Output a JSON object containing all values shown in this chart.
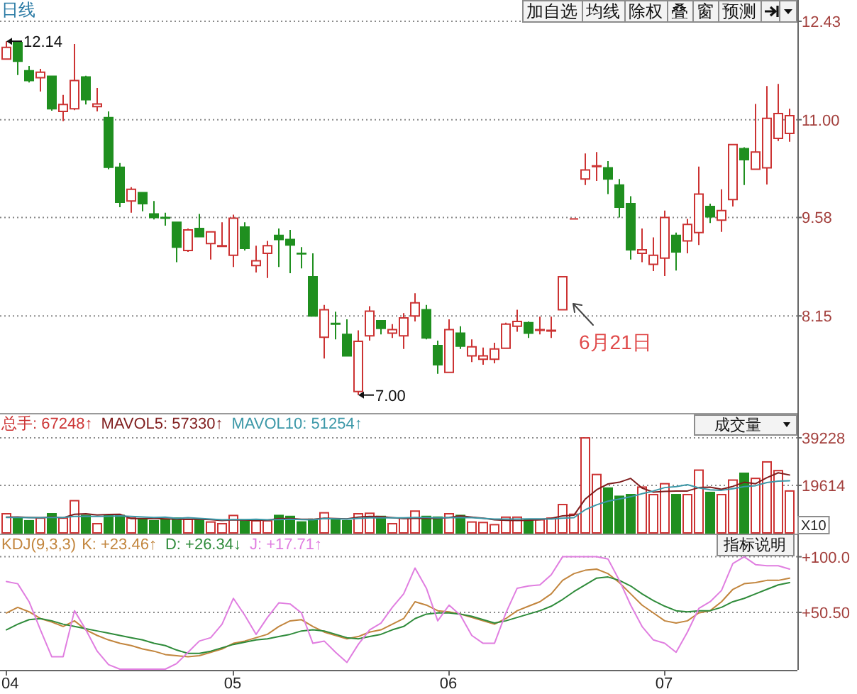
{
  "chart_data": [
    {
      "type": "candlestick",
      "title": "日线",
      "categories": [
        null,
        null,
        null,
        null,
        null,
        null,
        null,
        null,
        null,
        null,
        null,
        null,
        null,
        null,
        null,
        null,
        null,
        null,
        null,
        null,
        null,
        null,
        null,
        null,
        null,
        null,
        null,
        null,
        null,
        null,
        null,
        null,
        null,
        null,
        null,
        null,
        null,
        null,
        null,
        null,
        null,
        null,
        null,
        null,
        null,
        null,
        null,
        null,
        null,
        null,
        null,
        null,
        null,
        null,
        null,
        null,
        null,
        null,
        null,
        null,
        null,
        null,
        null,
        null,
        null,
        null,
        null,
        null,
        null,
        null
      ],
      "ohlc": [
        [
          11.88,
          12.14,
          11.88,
          12.05
        ],
        [
          12.12,
          12.12,
          11.65,
          11.85
        ],
        [
          11.71,
          11.78,
          11.54,
          11.57
        ],
        [
          11.61,
          11.74,
          11.41,
          11.69
        ],
        [
          11.63,
          11.64,
          11.13,
          11.16
        ],
        [
          11.12,
          11.36,
          10.98,
          11.22
        ],
        [
          11.16,
          12.1,
          11.14,
          11.57
        ],
        [
          11.62,
          11.64,
          11.22,
          11.29
        ],
        [
          11.19,
          11.46,
          11.12,
          11.23
        ],
        [
          11.03,
          11.12,
          10.28,
          10.31
        ],
        [
          10.31,
          10.37,
          9.73,
          9.8
        ],
        [
          9.82,
          10.02,
          9.65,
          9.99
        ],
        [
          9.94,
          9.94,
          9.67,
          9.78
        ],
        [
          9.63,
          9.82,
          9.55,
          9.58
        ],
        [
          9.58,
          9.65,
          9.46,
          9.57
        ],
        [
          9.51,
          9.51,
          8.93,
          9.15
        ],
        [
          9.1,
          9.42,
          9.08,
          9.4
        ],
        [
          9.42,
          9.63,
          9.3,
          9.3
        ],
        [
          9.2,
          9.38,
          8.97,
          9.37
        ],
        [
          9.16,
          9.51,
          9.15,
          9.17
        ],
        [
          9.03,
          9.62,
          8.86,
          9.57
        ],
        [
          9.44,
          9.51,
          9.1,
          9.13
        ],
        [
          8.88,
          9.17,
          8.78,
          8.95
        ],
        [
          9.06,
          9.24,
          8.7,
          9.17
        ],
        [
          9.32,
          9.42,
          8.86,
          9.26
        ],
        [
          9.26,
          9.4,
          8.77,
          9.18
        ],
        [
          9.06,
          9.15,
          8.84,
          9.05
        ],
        [
          8.72,
          9.06,
          8.15,
          8.15
        ],
        [
          7.84,
          8.31,
          7.53,
          8.24
        ],
        [
          8.04,
          8.21,
          7.81,
          8.03
        ],
        [
          7.88,
          8.1,
          7.57,
          7.57
        ],
        [
          7.05,
          7.94,
          7.0,
          7.78
        ],
        [
          7.86,
          8.29,
          7.79,
          8.22
        ],
        [
          8.08,
          8.08,
          7.88,
          7.97
        ],
        [
          7.9,
          8.03,
          7.83,
          7.95
        ],
        [
          7.86,
          8.19,
          7.67,
          8.12
        ],
        [
          8.15,
          8.48,
          8.07,
          8.34
        ],
        [
          8.24,
          8.31,
          7.81,
          7.83
        ],
        [
          7.72,
          7.79,
          7.31,
          7.44
        ],
        [
          7.33,
          8.1,
          7.33,
          7.95
        ],
        [
          7.9,
          8.0,
          7.67,
          7.71
        ],
        [
          7.57,
          7.81,
          7.48,
          7.7
        ],
        [
          7.52,
          7.69,
          7.44,
          7.57
        ],
        [
          7.52,
          7.76,
          7.46,
          7.67
        ],
        [
          7.68,
          8.05,
          7.68,
          8.03
        ],
        [
          8.0,
          8.24,
          7.92,
          8.07
        ],
        [
          8.05,
          8.07,
          7.83,
          7.9
        ],
        [
          7.94,
          8.14,
          7.88,
          7.95
        ],
        [
          7.93,
          8.14,
          7.83,
          7.94
        ],
        [
          8.24,
          8.72,
          8.24,
          8.72
        ],
        [
          9.56,
          9.56,
          9.56,
          9.56
        ],
        [
          10.14,
          10.51,
          10.05,
          10.27
        ],
        [
          10.32,
          10.53,
          10.11,
          10.33
        ],
        [
          10.3,
          10.4,
          9.92,
          10.14
        ],
        [
          10.05,
          10.14,
          9.58,
          9.73
        ],
        [
          9.78,
          9.89,
          8.97,
          9.11
        ],
        [
          9.06,
          9.42,
          8.93,
          9.11
        ],
        [
          8.9,
          9.29,
          8.8,
          9.03
        ],
        [
          8.99,
          9.68,
          8.73,
          9.58
        ],
        [
          9.32,
          9.36,
          8.81,
          9.08
        ],
        [
          9.24,
          9.56,
          9.06,
          9.48
        ],
        [
          9.36,
          10.32,
          9.18,
          9.92
        ],
        [
          9.74,
          9.78,
          9.5,
          9.59
        ],
        [
          9.54,
          9.99,
          9.37,
          9.68
        ],
        [
          9.84,
          10.64,
          9.74,
          10.64
        ],
        [
          10.58,
          10.6,
          10.05,
          10.42
        ],
        [
          10.28,
          11.23,
          10.28,
          10.53
        ],
        [
          10.3,
          11.49,
          10.06,
          11.02
        ],
        [
          10.73,
          11.52,
          10.69,
          11.09
        ],
        [
          10.8,
          11.16,
          10.68,
          11.06
        ]
      ],
      "colors": [
        "#cc3333",
        "#1f8f1f",
        "#1f8f1f",
        "#cc3333",
        "#1f8f1f",
        "#cc3333",
        "#cc3333",
        "#1f8f1f",
        "#cc3333",
        "#1f8f1f",
        "#1f8f1f",
        "#cc3333",
        "#1f8f1f",
        "#1f8f1f",
        "#1f8f1f",
        "#1f8f1f",
        "#cc3333",
        "#1f8f1f",
        "#cc3333",
        "#cc3333",
        "#cc3333",
        "#1f8f1f",
        "#cc3333",
        "#cc3333",
        "#1f8f1f",
        "#1f8f1f",
        "#1f8f1f",
        "#1f8f1f",
        "#cc3333",
        "#1f8f1f",
        "#1f8f1f",
        "#cc3333",
        "#cc3333",
        "#1f8f1f",
        "#cc3333",
        "#cc3333",
        "#cc3333",
        "#1f8f1f",
        "#1f8f1f",
        "#cc3333",
        "#1f8f1f",
        "#cc3333",
        "#cc3333",
        "#cc3333",
        "#cc3333",
        "#cc3333",
        "#1f8f1f",
        "#cc3333",
        "#cc3333",
        "#cc3333",
        "#cc3333",
        "#cc3333",
        "#cc3333",
        "#1f8f1f",
        "#1f8f1f",
        "#1f8f1f",
        "#cc3333",
        "#cc3333",
        "#cc3333",
        "#1f8f1f",
        "#cc3333",
        "#cc3333",
        "#1f8f1f",
        "#cc3333",
        "#cc3333",
        "#1f8f1f",
        "#cc3333",
        "#cc3333",
        "#cc3333",
        "#cc3333"
      ],
      "ylim": [
        6.76,
        12.43
      ],
      "yticks": [
        12.43,
        {
          "value": 11,
          "label": "11.00"
        },
        9.58,
        8.15
      ],
      "grid": "y",
      "tick_labels": "y",
      "annotations": [
        "6月21日",
        "12.14",
        "7.00",
        "加自选",
        "均线",
        "除权",
        "叠",
        "窗",
        "预测"
      ]
    },
    {
      "type": "bar",
      "categories": [
        null,
        null,
        null,
        null,
        null,
        null,
        null,
        null,
        null,
        null,
        null,
        null,
        null,
        null,
        null,
        null,
        null,
        null,
        null,
        null,
        null,
        null,
        null,
        null,
        null,
        null,
        null,
        null,
        null,
        null,
        null,
        null,
        null,
        null,
        null,
        null,
        null,
        null,
        null,
        null,
        null,
        null,
        null,
        null,
        null,
        null,
        null,
        null,
        null,
        null,
        null,
        null,
        null,
        null,
        null,
        null,
        null,
        null,
        null,
        null,
        null,
        null,
        null,
        null,
        null,
        null,
        null,
        null,
        null,
        null
      ],
      "series": [
        {
          "name": "总手: 67248↑",
          "color": "#cc3333",
          "colors": [
            "#cc3333",
            "#1f8f1f",
            "#1f8f1f",
            "#cc3333",
            "#1f8f1f",
            "#cc3333",
            "#cc3333",
            "#1f8f1f",
            "#cc3333",
            "#1f8f1f",
            "#1f8f1f",
            "#cc3333",
            "#1f8f1f",
            "#1f8f1f",
            "#1f8f1f",
            "#1f8f1f",
            "#cc3333",
            "#1f8f1f",
            "#cc3333",
            "#cc3333",
            "#cc3333",
            "#1f8f1f",
            "#cc3333",
            "#cc3333",
            "#1f8f1f",
            "#1f8f1f",
            "#1f8f1f",
            "#1f8f1f",
            "#cc3333",
            "#1f8f1f",
            "#1f8f1f",
            "#cc3333",
            "#cc3333",
            "#1f8f1f",
            "#cc3333",
            "#cc3333",
            "#cc3333",
            "#1f8f1f",
            "#1f8f1f",
            "#cc3333",
            "#1f8f1f",
            "#cc3333",
            "#cc3333",
            "#cc3333",
            "#cc3333",
            "#cc3333",
            "#1f8f1f",
            "#cc3333",
            "#cc3333",
            "#cc3333",
            "#cc3333",
            "#cc3333",
            "#cc3333",
            "#1f8f1f",
            "#1f8f1f",
            "#1f8f1f",
            "#cc3333",
            "#cc3333",
            "#cc3333",
            "#1f8f1f",
            "#cc3333",
            "#cc3333",
            "#1f8f1f",
            "#cc3333",
            "#cc3333",
            "#1f8f1f",
            "#cc3333",
            "#cc3333",
            "#cc3333",
            "#cc3333"
          ],
          "values": [
            7900,
            6100,
            5000,
            6100,
            7900,
            6100,
            13300,
            7200,
            3800,
            7200,
            7200,
            6100,
            5600,
            5000,
            5600,
            6100,
            5600,
            5600,
            4500,
            3800,
            7200,
            5400,
            5000,
            5000,
            7200,
            6800,
            4500,
            5600,
            8300,
            5600,
            5000,
            7900,
            8100,
            6800,
            3800,
            6100,
            9000,
            6800,
            6500,
            7900,
            7200,
            4500,
            4300,
            3400,
            6500,
            6500,
            5400,
            5400,
            6100,
            11700,
            7700,
            39200,
            24100,
            18500,
            15100,
            15800,
            18900,
            15800,
            20300,
            15800,
            15800,
            25900,
            16700,
            15800,
            21800,
            24600,
            22500,
            29300,
            25700,
            17300
          ]
        },
        {
          "type": "line",
          "name": "MAVOL5: 57330↑",
          "color": "#7f1d1d",
          "values": [
            6500,
            6600,
            6400,
            6300,
            6600,
            6200,
            7700,
            7900,
            7400,
            7600,
            7700,
            5900,
            5900,
            6000,
            5800,
            5700,
            5600,
            5600,
            5500,
            5100,
            5400,
            5300,
            5200,
            5300,
            5900,
            5900,
            5600,
            5600,
            6100,
            5900,
            5800,
            6500,
            6800,
            6700,
            6300,
            5900,
            6000,
            6000,
            6000,
            6400,
            7000,
            6500,
            6100,
            5400,
            5200,
            5100,
            5200,
            5500,
            6000,
            7000,
            7300,
            14000,
            17800,
            20200,
            20900,
            22500,
            18500,
            16800,
            17100,
            17300,
            17300,
            18700,
            18900,
            18000,
            19200,
            20900,
            20300,
            22800,
            24800,
            23900
          ]
        },
        {
          "type": "line",
          "name": "MAVOL10: 51254↑",
          "color": "#3c98a8",
          "values": [
            6400,
            6400,
            6300,
            6300,
            6400,
            6400,
            6800,
            6900,
            6800,
            6900,
            7000,
            6800,
            6600,
            6400,
            6500,
            6000,
            6300,
            6000,
            5700,
            5400,
            5500,
            5500,
            5600,
            5400,
            5500,
            5600,
            5500,
            5400,
            5900,
            5800,
            5700,
            6000,
            6200,
            6200,
            6200,
            6200,
            6400,
            6400,
            6200,
            6300,
            6400,
            6300,
            6000,
            5700,
            5700,
            5700,
            5800,
            5800,
            5700,
            6100,
            6300,
            9600,
            11600,
            13100,
            14000,
            14900,
            16200,
            17300,
            18700,
            19100,
            19900,
            18600,
            17800,
            17600,
            18200,
            19100,
            19500,
            20800,
            21400,
            21500
          ]
        }
      ],
      "ylim": [
        0,
        39228
      ],
      "yticks": [
        39228,
        19614
      ],
      "ylabel": "X10",
      "grid": "y",
      "legend": "top left",
      "tick_labels": "y",
      "annotations": [
        "成交量"
      ]
    },
    {
      "type": "line",
      "title": "KDJ(9,3,3)",
      "categories": [
        "04",
        null,
        null,
        null,
        null,
        null,
        null,
        null,
        null,
        null,
        null,
        null,
        null,
        null,
        null,
        null,
        null,
        null,
        null,
        null,
        "05",
        null,
        null,
        null,
        null,
        null,
        null,
        null,
        null,
        null,
        null,
        null,
        null,
        null,
        null,
        null,
        null,
        null,
        null,
        "06",
        null,
        null,
        null,
        null,
        null,
        null,
        null,
        null,
        null,
        null,
        null,
        null,
        null,
        null,
        null,
        null,
        null,
        null,
        "07",
        null,
        null,
        null,
        null,
        null,
        null,
        null,
        null,
        null,
        null,
        null
      ],
      "series": [
        {
          "name": "K: +23.46↑",
          "color": "#c2853d",
          "values": [
            50,
            55,
            51,
            45,
            42,
            38,
            43,
            35,
            30,
            26,
            23,
            21,
            18,
            16,
            13,
            12,
            11,
            12,
            15,
            18,
            23,
            25,
            28,
            31,
            38,
            43,
            44,
            38,
            33,
            30,
            27,
            29,
            33,
            35,
            40,
            45,
            60,
            57,
            52,
            51,
            49,
            46,
            43,
            40,
            45,
            52,
            56,
            60,
            67,
            79,
            85,
            88,
            89,
            85,
            77,
            67,
            57,
            50,
            43,
            41,
            43,
            50,
            52,
            60,
            71,
            76,
            77,
            79,
            79,
            81
          ]
        },
        {
          "name": "D: +26.34↓",
          "color": "#2e8b3a",
          "values": [
            35,
            40,
            44,
            45,
            43,
            40,
            38,
            36,
            34,
            32,
            30,
            28,
            26,
            23,
            21,
            17,
            14,
            14,
            16,
            19,
            22,
            24,
            26,
            27,
            29,
            31,
            34,
            35,
            34,
            31,
            28,
            27,
            29,
            31,
            35,
            38,
            45,
            49,
            50,
            50,
            49,
            47,
            44,
            41,
            43,
            46,
            49,
            52,
            56,
            62,
            69,
            75,
            81,
            82,
            79,
            74,
            67,
            61,
            56,
            52,
            51,
            52,
            52,
            55,
            60,
            63,
            67,
            71,
            75,
            77
          ]
        },
        {
          "name": "J: +17.71↑",
          "color": "#e07ee0",
          "values": [
            78,
            76,
            60,
            35,
            11,
            11,
            52,
            35,
            16,
            4,
            0,
            0,
            0,
            0,
            0,
            5,
            15,
            25,
            28,
            40,
            63,
            48,
            31,
            46,
            59,
            58,
            50,
            23,
            25,
            15,
            6,
            22,
            35,
            41,
            55,
            67,
            90,
            72,
            43,
            57,
            48,
            30,
            23,
            23,
            50,
            72,
            74,
            75,
            84,
            100,
            100,
            100,
            100,
            98,
            79,
            57,
            38,
            26,
            23,
            15,
            33,
            54,
            60,
            70,
            94,
            100,
            93,
            92,
            92,
            89
          ]
        }
      ],
      "ylim": [
        0,
        100
      ],
      "yticks": [
        {
          "value": 100,
          "label": "+100.0"
        },
        {
          "value": 50.5,
          "label": "+50.50"
        }
      ],
      "grid": "y",
      "legend": "top left",
      "annotations": [
        "指标说明"
      ]
    }
  ]
}
